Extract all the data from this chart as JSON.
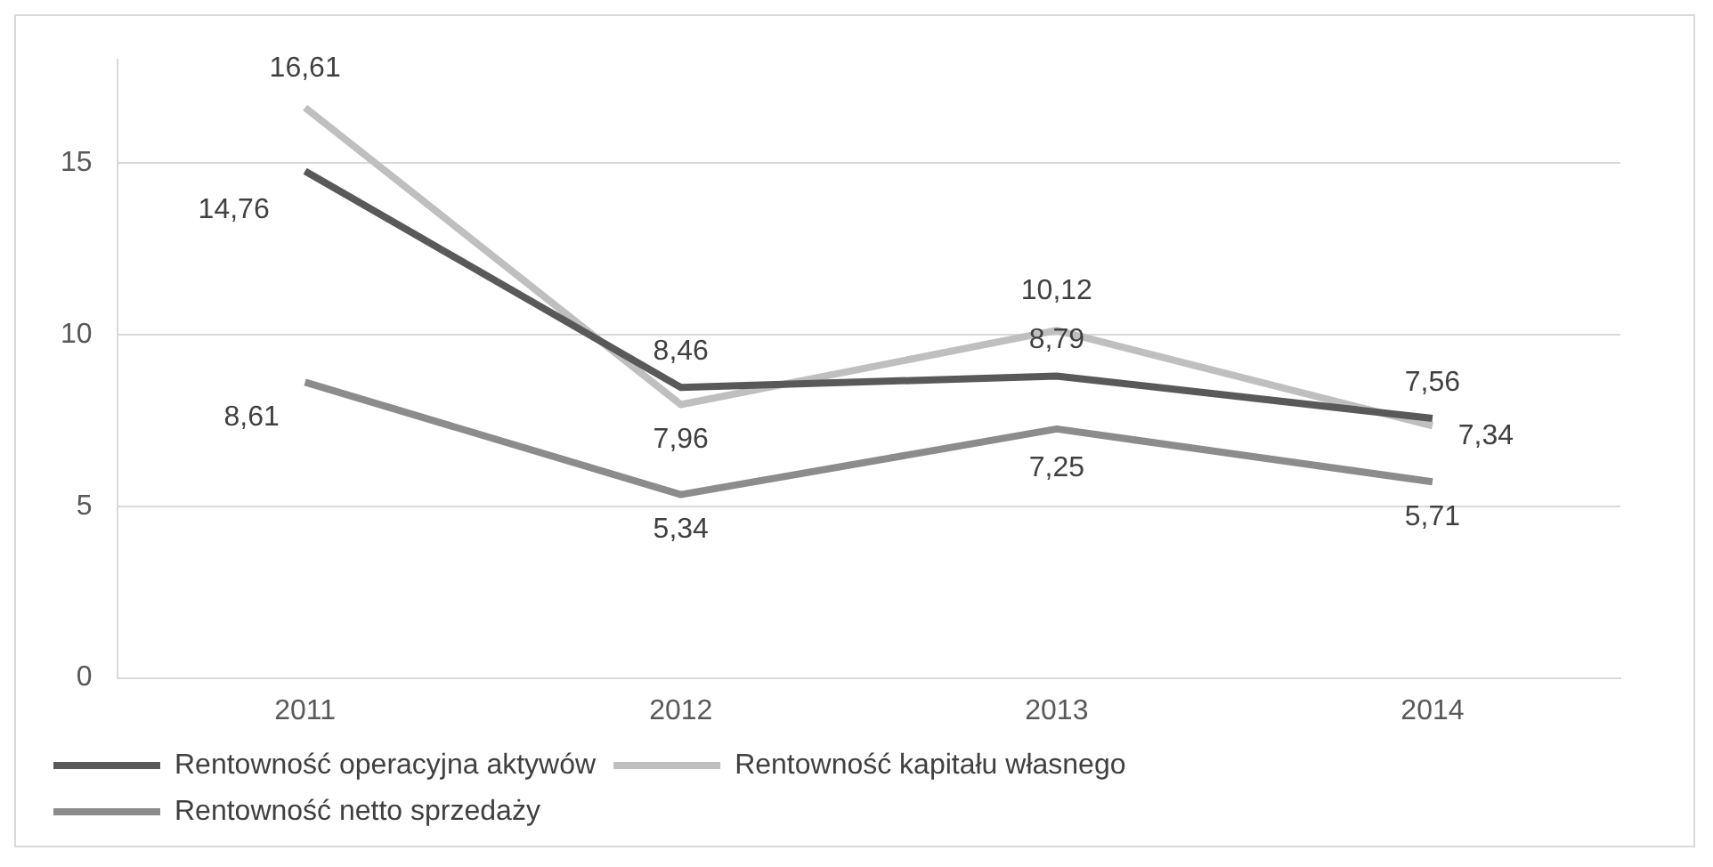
{
  "chart_data": {
    "type": "line",
    "categories": [
      "2011",
      "2012",
      "2013",
      "2014"
    ],
    "series": [
      {
        "name": "Rentowność operacyjna aktywów",
        "color": "#595959",
        "values": [
          14.76,
          8.46,
          8.79,
          7.56
        ],
        "value_labels": [
          "14,76",
          "8,46",
          "8,79",
          "7,56"
        ]
      },
      {
        "name": "Rentowność kapitału własnego",
        "color": "#bfbfbf",
        "values": [
          16.61,
          7.96,
          10.12,
          7.34
        ],
        "value_labels": [
          "16,61",
          "7,96",
          "10,12",
          "7,34"
        ]
      },
      {
        "name": "Rentowność netto sprzedaży",
        "color": "#8c8c8c",
        "values": [
          8.61,
          5.34,
          7.25,
          5.71
        ],
        "value_labels": [
          "8,61",
          "5,34",
          "7,25",
          "5,71"
        ]
      }
    ],
    "ylim": [
      0,
      18
    ],
    "yticks": [
      0,
      5,
      10,
      15
    ],
    "grid": "y",
    "legend": "bottom",
    "marker": "none",
    "line_style": "solid"
  }
}
